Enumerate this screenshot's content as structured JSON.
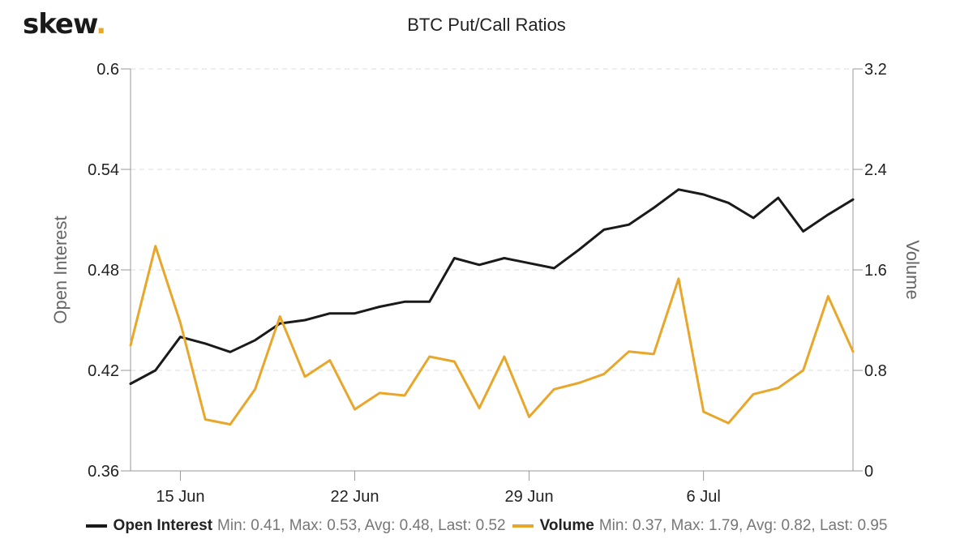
{
  "logo": {
    "text": "skew",
    "dot": "."
  },
  "chart_data": {
    "type": "line",
    "title": "BTC Put/Call Ratios",
    "x": [
      "Jun 13",
      "Jun 14",
      "Jun 15",
      "Jun 16",
      "Jun 17",
      "Jun 18",
      "Jun 19",
      "Jun 20",
      "Jun 21",
      "Jun 22",
      "Jun 23",
      "Jun 24",
      "Jun 25",
      "Jun 26",
      "Jun 27",
      "Jun 28",
      "Jun 29",
      "Jun 30",
      "Jul 1",
      "Jul 2",
      "Jul 3",
      "Jul 4",
      "Jul 5",
      "Jul 6",
      "Jul 7",
      "Jul 8",
      "Jul 9",
      "Jul 10",
      "Jul 11",
      "Jul 12"
    ],
    "x_ticks": [
      {
        "index": 2,
        "label": "15 Jun"
      },
      {
        "index": 9,
        "label": "22 Jun"
      },
      {
        "index": 16,
        "label": "29 Jun"
      },
      {
        "index": 23,
        "label": "6 Jul"
      }
    ],
    "y_left": {
      "label": "Open Interest",
      "min": 0.36,
      "max": 0.6,
      "ticks": [
        "0.36",
        "0.42",
        "0.48",
        "0.54",
        "0.6"
      ]
    },
    "y_right": {
      "label": "Volume",
      "min": 0,
      "max": 3.2,
      "ticks": [
        "0",
        "0.8",
        "1.6",
        "2.4",
        "3.2"
      ]
    },
    "grid": true,
    "legend_position": "bottom",
    "series": [
      {
        "name": "Open Interest",
        "axis": "left",
        "color": "#1a1a1a",
        "values": [
          0.412,
          0.42,
          0.44,
          0.436,
          0.431,
          0.438,
          0.448,
          0.45,
          0.454,
          0.454,
          0.458,
          0.461,
          0.461,
          0.487,
          0.483,
          0.487,
          0.484,
          0.481,
          0.492,
          0.504,
          0.507,
          0.517,
          0.528,
          0.525,
          0.52,
          0.511,
          0.523,
          0.503,
          0.513,
          0.522
        ],
        "stats": "Min: 0.41, Max: 0.53, Avg: 0.48, Last: 0.52"
      },
      {
        "name": "Volume",
        "axis": "right",
        "color": "#e8a72a",
        "values": [
          1.0,
          1.79,
          1.18,
          0.41,
          0.37,
          0.65,
          1.23,
          0.75,
          0.88,
          0.49,
          0.62,
          0.6,
          0.91,
          0.87,
          0.5,
          0.91,
          0.43,
          0.65,
          0.7,
          0.77,
          0.95,
          0.93,
          1.53,
          0.47,
          0.38,
          0.61,
          0.66,
          0.8,
          1.39,
          0.95
        ],
        "stats": "Min: 0.37, Max: 1.79, Avg: 0.82, Last: 0.95"
      }
    ]
  }
}
